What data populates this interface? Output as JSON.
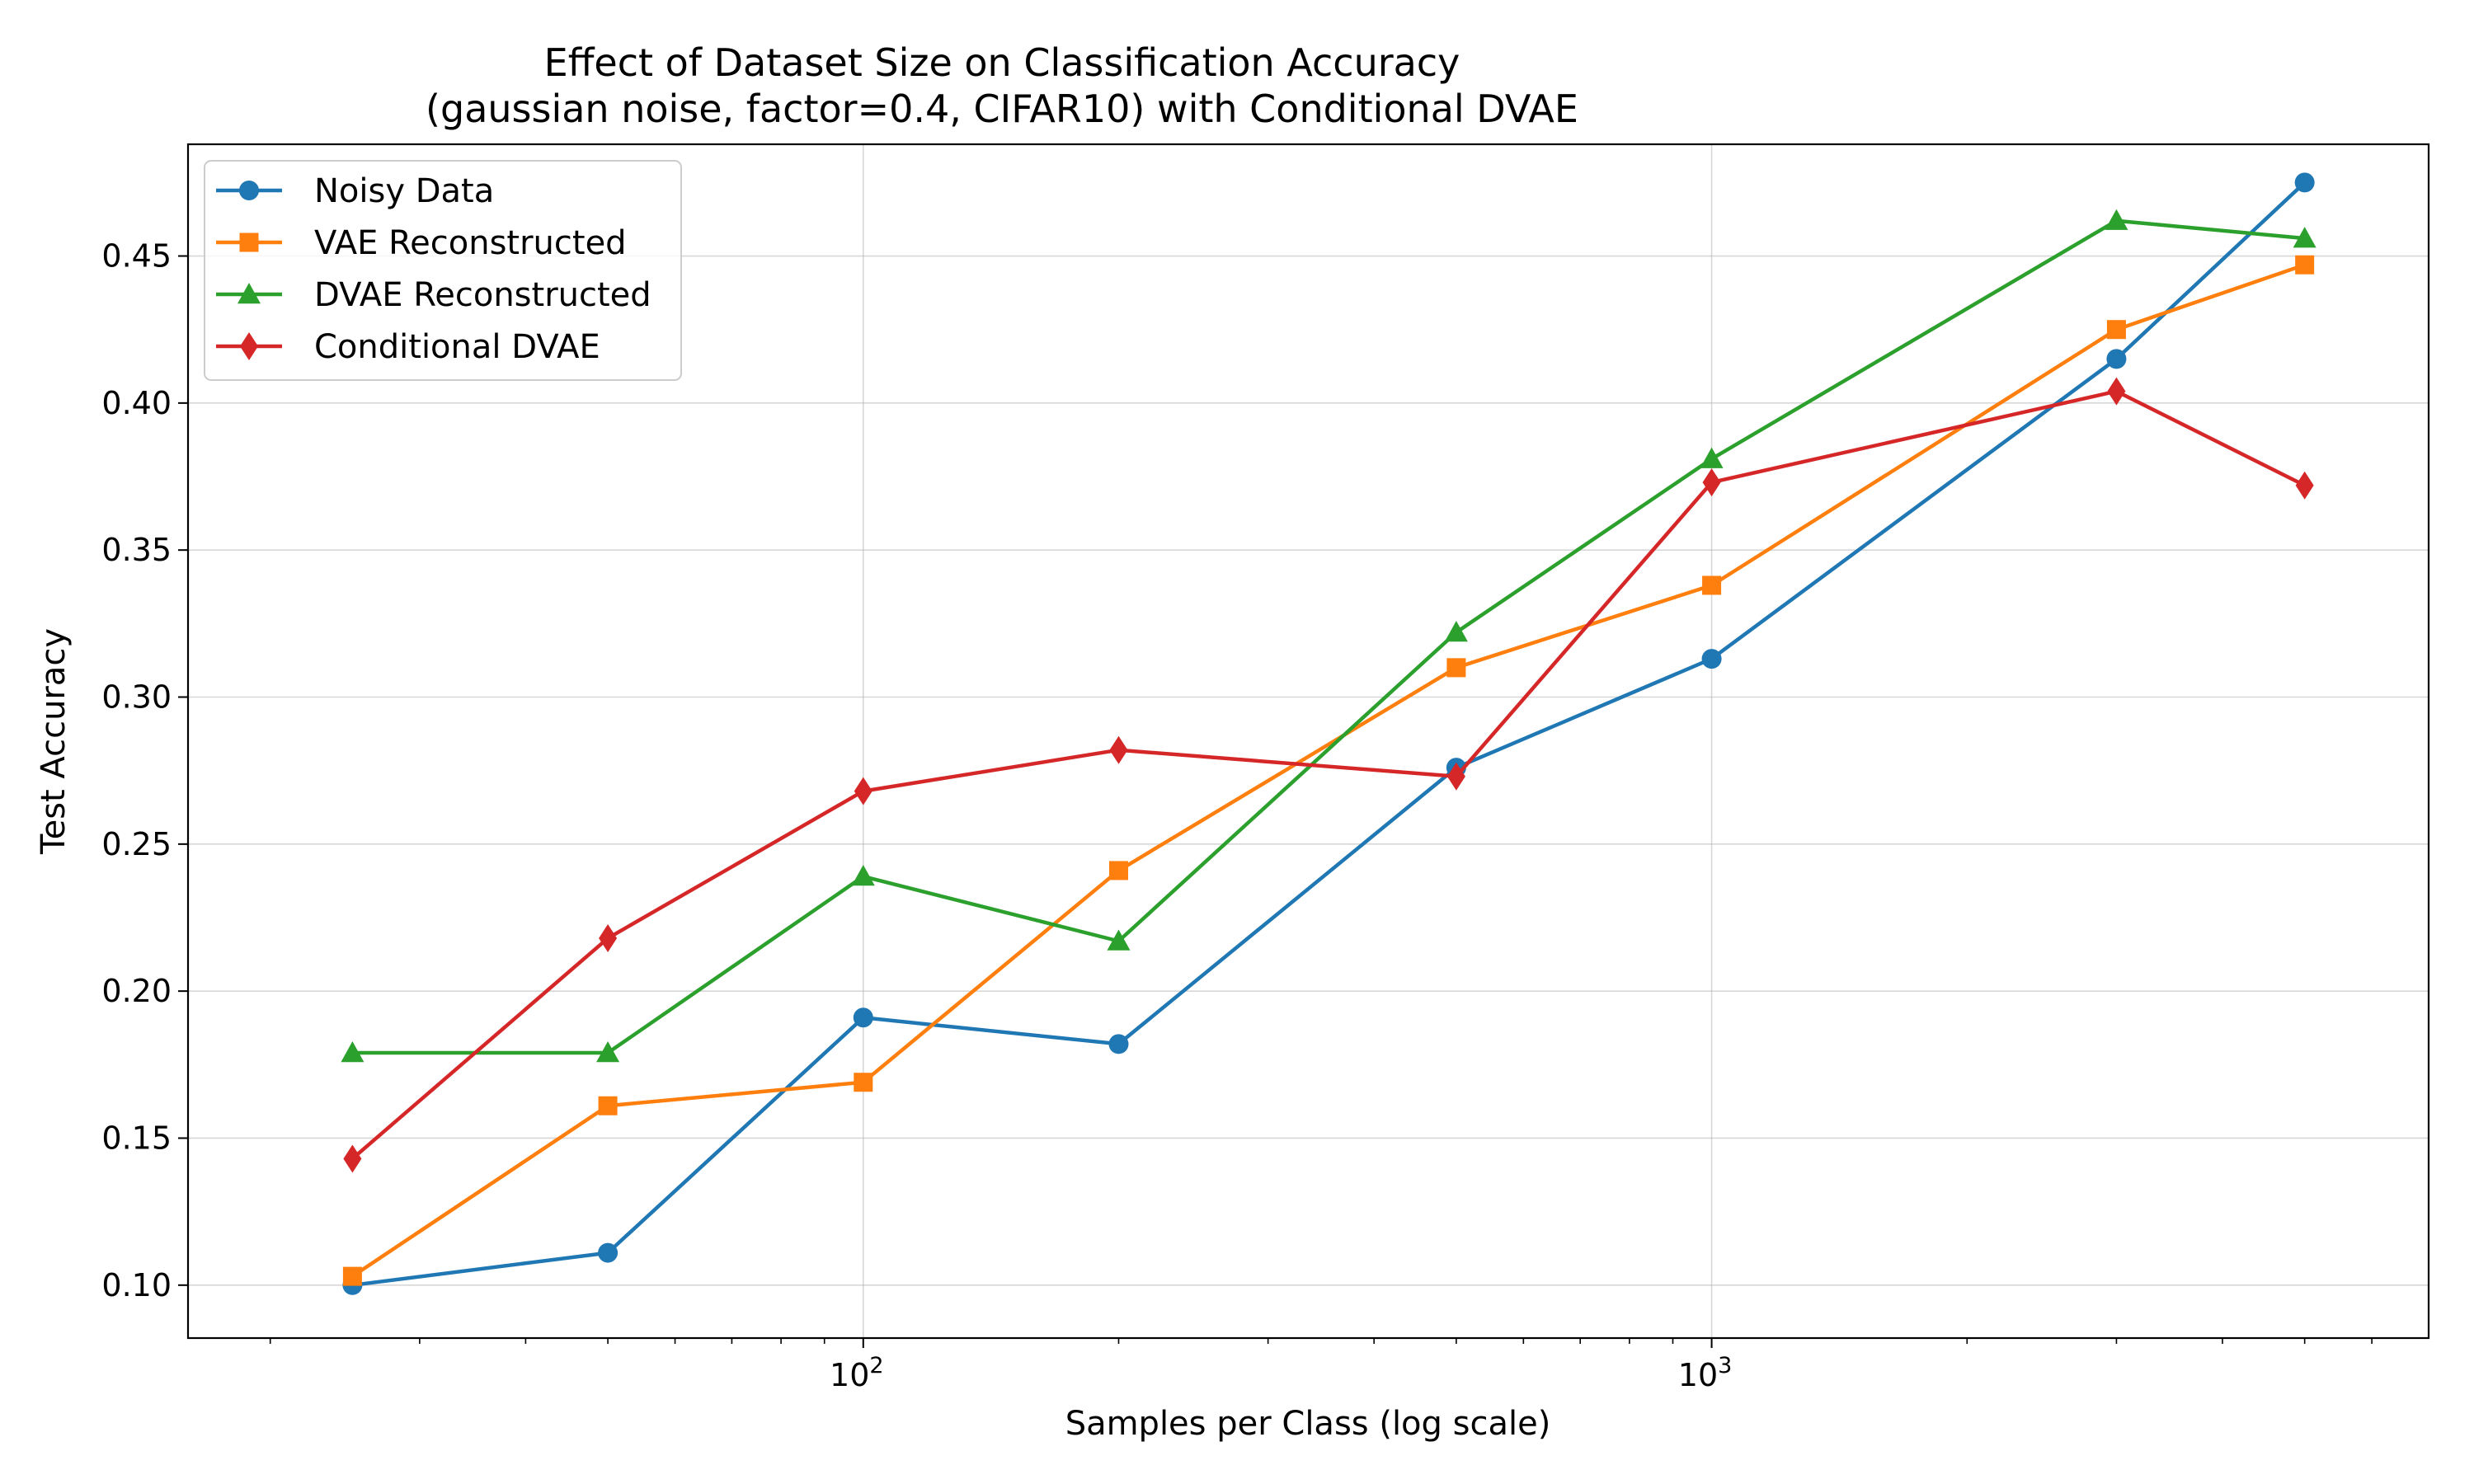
{
  "chart_data": {
    "type": "line",
    "title_line1": "Effect of Dataset Size on Classification Accuracy",
    "title_line2": "(gaussian noise, factor=0.4, CIFAR10) with Conditional DVAE",
    "xlabel": "Samples per Class (log scale)",
    "ylabel": "Test Accuracy",
    "xscale": "log",
    "xlim": [
      16,
      7000
    ],
    "ylim": [
      0.082,
      0.488
    ],
    "x": [
      25,
      50,
      100,
      200,
      500,
      1000,
      3000,
      5000
    ],
    "xticks": [
      {
        "base": "10",
        "exp": "2",
        "value": 100
      },
      {
        "base": "10",
        "exp": "3",
        "value": 1000
      }
    ],
    "yticks": [
      "0.10",
      "0.15",
      "0.20",
      "0.25",
      "0.30",
      "0.35",
      "0.40",
      "0.45"
    ],
    "grid": true,
    "legend_position": "upper-left",
    "series": [
      {
        "name": "Noisy Data",
        "color": "#1f77b4",
        "marker": "circle",
        "values": [
          0.1,
          0.111,
          0.191,
          0.182,
          0.276,
          0.313,
          0.415,
          0.475
        ]
      },
      {
        "name": "VAE Reconstructed",
        "color": "#ff7f0e",
        "marker": "square",
        "values": [
          0.103,
          0.161,
          0.169,
          0.241,
          0.31,
          0.338,
          0.425,
          0.447
        ]
      },
      {
        "name": "DVAE Reconstructed",
        "color": "#2ca02c",
        "marker": "triangle",
        "values": [
          0.179,
          0.179,
          0.239,
          0.217,
          0.322,
          0.381,
          0.462,
          0.456
        ]
      },
      {
        "name": "Conditional DVAE",
        "color": "#d62728",
        "marker": "diamond",
        "values": [
          0.143,
          0.218,
          0.268,
          0.282,
          0.273,
          0.373,
          0.404,
          0.372
        ]
      }
    ]
  }
}
